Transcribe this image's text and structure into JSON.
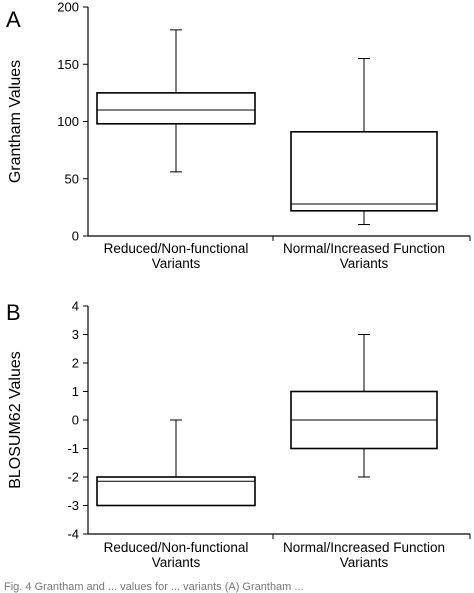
{
  "figure": {
    "caption_fragment": "Fig. 4  Grantham and ... values for ... variants (A) Grantham ..."
  },
  "chart_data": [
    {
      "type": "box",
      "panel_label": "A",
      "title": "",
      "xlabel": "",
      "ylabel": "Grantham Values",
      "ylim": [
        0,
        200
      ],
      "yticks": [
        0,
        50,
        100,
        150,
        200
      ],
      "grid": false,
      "categories": [
        "Reduced/Non-functional Variants",
        "Normal/Increased Function Variants"
      ],
      "category_lines": [
        [
          "Reduced/Non-functional",
          "Variants"
        ],
        [
          "Normal/Increased Function",
          "Variants"
        ]
      ],
      "boxes": [
        {
          "whisker_low": 56,
          "q1": 98,
          "median": 110,
          "q3": 125,
          "whisker_high": 180
        },
        {
          "whisker_low": 10,
          "q1": 22,
          "median": 28,
          "q3": 91,
          "whisker_high": 155
        }
      ]
    },
    {
      "type": "box",
      "panel_label": "B",
      "title": "",
      "xlabel": "",
      "ylabel": "BLOSUM62 Values",
      "ylim": [
        -4,
        4
      ],
      "yticks": [
        -4,
        -3,
        -2,
        -1,
        0,
        1,
        2,
        3,
        4
      ],
      "grid": false,
      "categories": [
        "Reduced/Non-functional Variants",
        "Normal/Increased Function Variants"
      ],
      "category_lines": [
        [
          "Reduced/Non-functional",
          "Variants"
        ],
        [
          "Normal/Increased Function",
          "Variants"
        ]
      ],
      "boxes": [
        {
          "whisker_low": -3,
          "q1": -3,
          "median": -2.15,
          "q3": -2,
          "whisker_high": 0
        },
        {
          "whisker_low": -2,
          "q1": -1,
          "median": 0,
          "q3": 1,
          "whisker_high": 3
        }
      ]
    }
  ]
}
